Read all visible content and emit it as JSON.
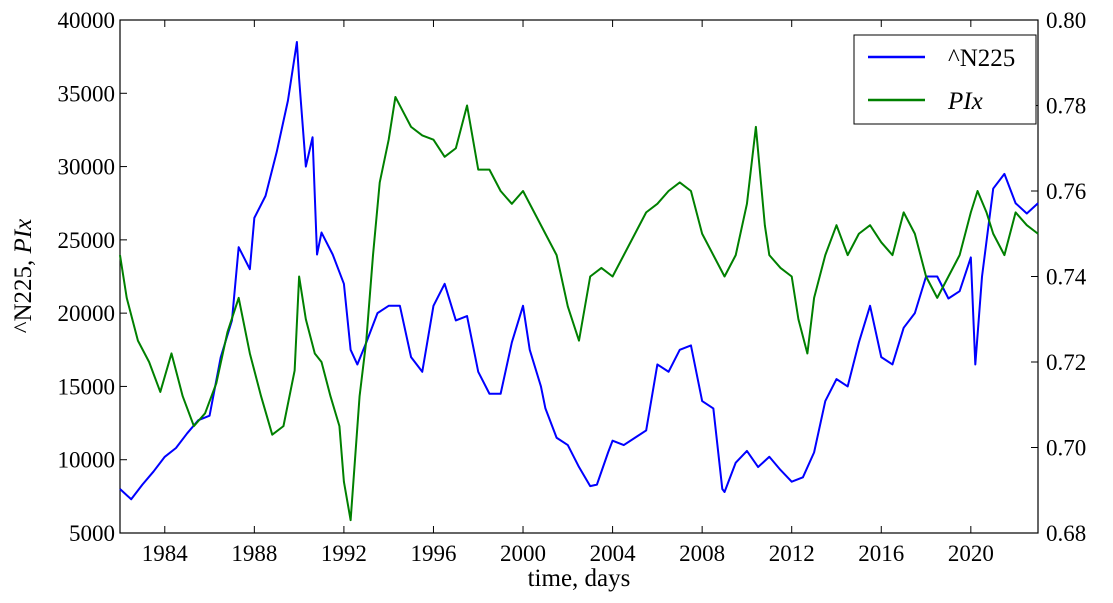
{
  "chart_data": {
    "type": "line",
    "title": "",
    "xlabel": "time, days",
    "ylabel_left": "^N225, ",
    "ylabel_left_italic": "PIx",
    "xlim": [
      1982.0,
      2023.0
    ],
    "ylim_left": [
      5000,
      40000
    ],
    "ylim_right": [
      0.68,
      0.8
    ],
    "x_ticks": [
      1984,
      1988,
      1992,
      1996,
      2000,
      2004,
      2008,
      2012,
      2016,
      2020
    ],
    "x_tick_labels": [
      "1984",
      "1988",
      "1992",
      "1996",
      "2000",
      "2004",
      "2008",
      "2012",
      "2016",
      "2020"
    ],
    "y_left_ticks": [
      5000,
      10000,
      15000,
      20000,
      25000,
      30000,
      35000,
      40000
    ],
    "y_left_tick_labels": [
      "5000",
      "10000",
      "15000",
      "20000",
      "25000",
      "30000",
      "35000",
      "40000"
    ],
    "y_right_ticks": [
      0.68,
      0.7,
      0.72,
      0.74,
      0.76,
      0.78,
      0.8
    ],
    "y_right_tick_labels": [
      "0.68",
      "0.70",
      "0.72",
      "0.74",
      "0.76",
      "0.78",
      "0.80"
    ],
    "grid": false,
    "legend_position": "top-right",
    "series": [
      {
        "name": "^N225",
        "axis": "left",
        "color": "#0000ff",
        "x": [
          1982.0,
          1982.5,
          1983.0,
          1983.5,
          1984.0,
          1984.5,
          1985.0,
          1985.5,
          1986.0,
          1986.5,
          1987.0,
          1987.3,
          1987.8,
          1988.0,
          1988.5,
          1989.0,
          1989.5,
          1989.9,
          1990.0,
          1990.3,
          1990.6,
          1990.8,
          1991.0,
          1991.5,
          1992.0,
          1992.3,
          1992.6,
          1993.0,
          1993.5,
          1994.0,
          1994.5,
          1995.0,
          1995.5,
          1996.0,
          1996.5,
          1997.0,
          1997.5,
          1998.0,
          1998.5,
          1999.0,
          1999.5,
          2000.0,
          2000.3,
          2000.8,
          2001.0,
          2001.5,
          2002.0,
          2002.5,
          2003.0,
          2003.3,
          2003.8,
          2004.0,
          2004.5,
          2005.0,
          2005.5,
          2006.0,
          2006.5,
          2007.0,
          2007.5,
          2008.0,
          2008.5,
          2008.9,
          2009.0,
          2009.5,
          2010.0,
          2010.5,
          2011.0,
          2011.5,
          2012.0,
          2012.5,
          2013.0,
          2013.5,
          2014.0,
          2014.5,
          2015.0,
          2015.5,
          2016.0,
          2016.5,
          2017.0,
          2017.5,
          2018.0,
          2018.5,
          2019.0,
          2019.5,
          2020.0,
          2020.2,
          2020.5,
          2021.0,
          2021.5,
          2022.0,
          2022.5,
          2023.0
        ],
        "y": [
          8000,
          7300,
          8300,
          9200,
          10200,
          10800,
          11800,
          12700,
          13000,
          17000,
          19500,
          24500,
          23000,
          26500,
          28000,
          31000,
          34500,
          38500,
          36000,
          30000,
          32000,
          24000,
          25500,
          24000,
          22000,
          17500,
          16500,
          18000,
          20000,
          20500,
          20500,
          17000,
          16000,
          20500,
          22000,
          19500,
          19800,
          16000,
          14500,
          14500,
          18000,
          20500,
          17500,
          15000,
          13500,
          11500,
          11000,
          9500,
          8200,
          8300,
          10500,
          11300,
          11000,
          11500,
          12000,
          16500,
          16000,
          17500,
          17800,
          14000,
          13500,
          8000,
          7800,
          9800,
          10600,
          9500,
          10200,
          9300,
          8500,
          8800,
          10500,
          14000,
          15500,
          15000,
          18000,
          20500,
          17000,
          16500,
          19000,
          20000,
          22500,
          22500,
          21000,
          21500,
          23800,
          16500,
          22500,
          28500,
          29500,
          27500,
          26800,
          27500
        ]
      },
      {
        "name": "PIx",
        "axis": "right",
        "color": "#008000",
        "x": [
          1982.0,
          1982.3,
          1982.8,
          1983.3,
          1983.8,
          1984.3,
          1984.8,
          1985.3,
          1985.8,
          1986.3,
          1986.8,
          1987.3,
          1987.8,
          1988.3,
          1988.8,
          1989.3,
          1989.8,
          1990.0,
          1990.3,
          1990.7,
          1991.0,
          1991.4,
          1991.8,
          1992.0,
          1992.3,
          1992.7,
          1993.0,
          1993.3,
          1993.6,
          1994.0,
          1994.3,
          1994.7,
          1995.0,
          1995.5,
          1996.0,
          1996.5,
          1997.0,
          1997.5,
          1998.0,
          1998.5,
          1999.0,
          1999.5,
          2000.0,
          2000.5,
          2001.0,
          2001.5,
          2002.0,
          2002.5,
          2003.0,
          2003.5,
          2004.0,
          2004.5,
          2005.0,
          2005.5,
          2006.0,
          2006.5,
          2007.0,
          2007.5,
          2008.0,
          2008.5,
          2009.0,
          2009.5,
          2010.0,
          2010.4,
          2010.8,
          2011.0,
          2011.5,
          2012.0,
          2012.3,
          2012.7,
          2013.0,
          2013.5,
          2014.0,
          2014.5,
          2015.0,
          2015.5,
          2016.0,
          2016.5,
          2017.0,
          2017.5,
          2018.0,
          2018.5,
          2019.0,
          2019.5,
          2020.0,
          2020.3,
          2020.7,
          2021.0,
          2021.5,
          2022.0,
          2022.5,
          2023.0
        ],
        "y": [
          0.745,
          0.735,
          0.725,
          0.72,
          0.713,
          0.722,
          0.712,
          0.705,
          0.708,
          0.715,
          0.727,
          0.735,
          0.722,
          0.712,
          0.703,
          0.705,
          0.718,
          0.74,
          0.73,
          0.722,
          0.72,
          0.712,
          0.705,
          0.692,
          0.683,
          0.712,
          0.725,
          0.745,
          0.762,
          0.772,
          0.782,
          0.778,
          0.775,
          0.773,
          0.772,
          0.768,
          0.77,
          0.78,
          0.765,
          0.765,
          0.76,
          0.757,
          0.76,
          0.755,
          0.75,
          0.745,
          0.733,
          0.725,
          0.74,
          0.742,
          0.74,
          0.745,
          0.75,
          0.755,
          0.757,
          0.76,
          0.762,
          0.76,
          0.75,
          0.745,
          0.74,
          0.745,
          0.757,
          0.775,
          0.752,
          0.745,
          0.742,
          0.74,
          0.73,
          0.722,
          0.735,
          0.745,
          0.752,
          0.745,
          0.75,
          0.752,
          0.748,
          0.745,
          0.755,
          0.75,
          0.74,
          0.735,
          0.74,
          0.745,
          0.755,
          0.76,
          0.755,
          0.75,
          0.745,
          0.755,
          0.752,
          0.75
        ]
      }
    ]
  }
}
